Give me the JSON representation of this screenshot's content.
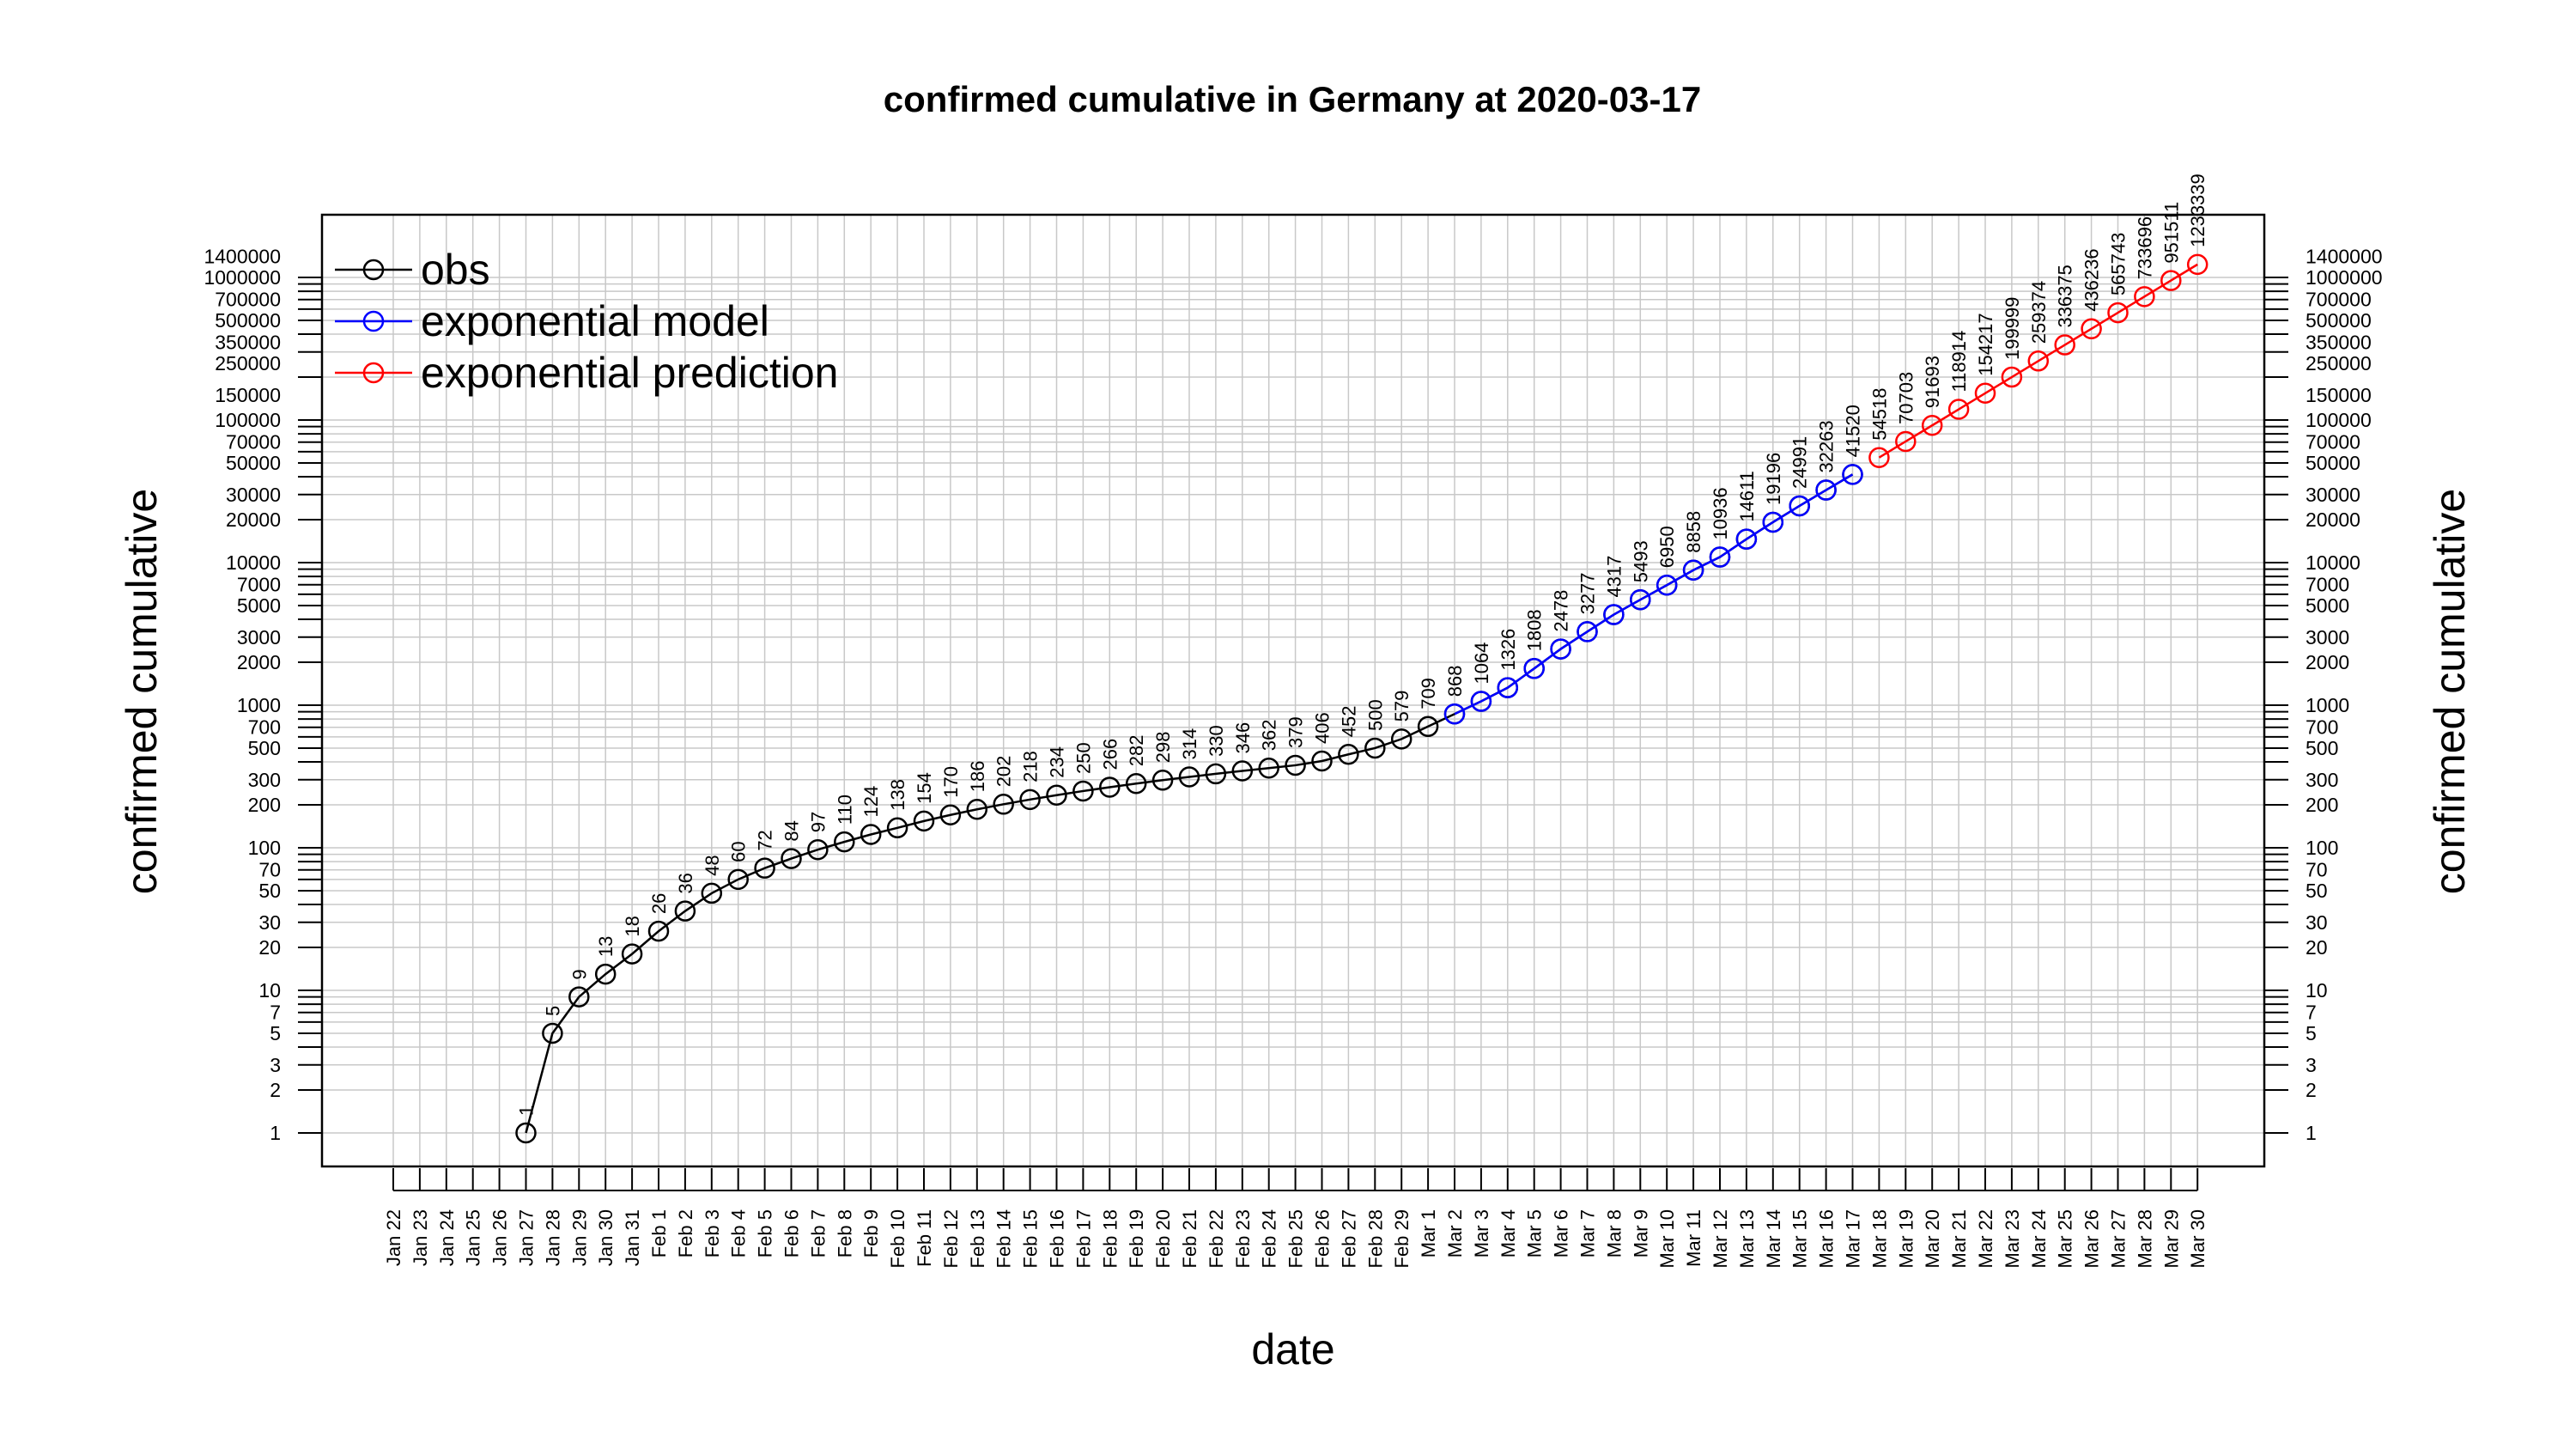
{
  "chart_data": {
    "type": "line",
    "title": "confirmed cumulative in Germany at 2020-03-17",
    "xlabel": "date",
    "ylabel": "confirmed cumulative",
    "y_scale": "log",
    "ylim": [
      1,
      1400000
    ],
    "grid": true,
    "legend_position": "top-left",
    "x_tick_labels": [
      "Jan 22",
      "Jan 23",
      "Jan 24",
      "Jan 25",
      "Jan 26",
      "Jan 27",
      "Jan 28",
      "Jan 29",
      "Jan 30",
      "Jan 31",
      "Feb 1",
      "Feb 2",
      "Feb 3",
      "Feb 4",
      "Feb 5",
      "Feb 6",
      "Feb 7",
      "Feb 8",
      "Feb 9",
      "Feb 10",
      "Feb 11",
      "Feb 12",
      "Feb 13",
      "Feb 14",
      "Feb 15",
      "Feb 16",
      "Feb 17",
      "Feb 18",
      "Feb 19",
      "Feb 20",
      "Feb 21",
      "Feb 22",
      "Feb 23",
      "Feb 24",
      "Feb 25",
      "Feb 26",
      "Feb 27",
      "Feb 28",
      "Feb 29",
      "Mar 1",
      "Mar 2",
      "Mar 3",
      "Mar 4",
      "Mar 5",
      "Mar 6",
      "Mar 7",
      "Mar 8",
      "Mar 9",
      "Mar 10",
      "Mar 11",
      "Mar 12",
      "Mar 13",
      "Mar 14",
      "Mar 15",
      "Mar 16",
      "Mar 17",
      "Mar 18",
      "Mar 19",
      "Mar 20",
      "Mar 21",
      "Mar 22",
      "Mar 23",
      "Mar 24",
      "Mar 25",
      "Mar 26",
      "Mar 27",
      "Mar 28",
      "Mar 29",
      "Mar 30"
    ],
    "y_tick_labels": [
      1,
      2,
      3,
      5,
      7,
      10,
      20,
      30,
      50,
      70,
      100,
      200,
      300,
      500,
      700,
      1000,
      2000,
      3000,
      5000,
      7000,
      10000,
      20000,
      30000,
      50000,
      70000,
      100000,
      150000,
      250000,
      350000,
      500000,
      700000,
      1000000,
      1400000
    ],
    "series": [
      {
        "name": "obs",
        "color": "#000000",
        "x": [
          "Jan 27",
          "Jan 28",
          "Jan 29",
          "Jan 30",
          "Jan 31",
          "Feb 1",
          "Feb 2",
          "Feb 3",
          "Feb 4",
          "Feb 5",
          "Feb 6",
          "Feb 7",
          "Feb 8",
          "Feb 9",
          "Feb 10",
          "Feb 11",
          "Feb 12",
          "Feb 13",
          "Feb 14",
          "Feb 15",
          "Feb 16",
          "Feb 17",
          "Feb 18",
          "Feb 19",
          "Feb 20",
          "Feb 21",
          "Feb 22",
          "Feb 23",
          "Feb 24",
          "Feb 25",
          "Feb 26",
          "Feb 27",
          "Feb 28",
          "Feb 29",
          "Mar 1",
          "Mar 2",
          "Mar 3",
          "Mar 4",
          "Mar 5",
          "Mar 6",
          "Mar 7",
          "Mar 8",
          "Mar 9",
          "Mar 10",
          "Mar 11",
          "Mar 12",
          "Mar 13",
          "Mar 14",
          "Mar 15",
          "Mar 16",
          "Mar 17"
        ],
        "values": [
          1,
          5,
          9,
          13,
          18,
          26,
          36,
          48,
          60,
          72,
          84,
          97,
          110,
          124,
          138,
          154,
          170,
          186,
          202,
          218,
          234,
          250,
          266,
          282,
          298,
          314,
          330,
          346,
          362,
          379,
          406,
          452,
          500,
          579,
          709,
          868,
          1064,
          1326,
          1808,
          2478,
          3277,
          4317,
          5493,
          6950,
          8858,
          10936,
          14611,
          19196,
          24991,
          32263,
          41520
        ],
        "labels": [
          "1",
          "5",
          "9",
          "13",
          "18",
          "26",
          "36",
          "48",
          "60",
          "72",
          "84",
          "97",
          "110",
          "124",
          "138",
          "154",
          "170",
          "186",
          "202",
          "218",
          "234",
          "250",
          "266",
          "282",
          "298",
          "314",
          "330",
          "346",
          "362",
          "379",
          "406",
          "452",
          "500",
          "579",
          "709",
          "868",
          "1064",
          "1326",
          "1808",
          "2478",
          "3277",
          "4317",
          "5493",
          "6950",
          "8858",
          "10936",
          "14611",
          "19196",
          "24991",
          "32263",
          "41520"
        ]
      },
      {
        "name": "exponential model",
        "color": "#0000ff",
        "x": [
          "Mar 2",
          "Mar 3",
          "Mar 4",
          "Mar 5",
          "Mar 6",
          "Mar 7",
          "Mar 8",
          "Mar 9",
          "Mar 10",
          "Mar 11",
          "Mar 12",
          "Mar 13",
          "Mar 14",
          "Mar 15",
          "Mar 16",
          "Mar 17"
        ],
        "values": [
          868,
          1064,
          1326,
          1808,
          2478,
          3277,
          4317,
          5493,
          6950,
          8858,
          10936,
          14611,
          19196,
          24991,
          32263,
          41520
        ]
      },
      {
        "name": "exponential prediction",
        "color": "#ff0000",
        "x": [
          "Mar 18",
          "Mar 19",
          "Mar 20",
          "Mar 21",
          "Mar 22",
          "Mar 23",
          "Mar 24",
          "Mar 25",
          "Mar 26",
          "Mar 27",
          "Mar 28",
          "Mar 29",
          "Mar 30"
        ],
        "values": [
          54518,
          70703,
          91693,
          118914,
          154217,
          199999,
          259374,
          336375,
          436236,
          565743,
          733696,
          951511,
          1233339
        ],
        "labels": [
          "54518",
          "70703",
          "91693",
          "118914",
          "154217",
          "199999",
          "259374",
          "336375",
          "436236",
          "565743",
          "733696",
          "951511",
          "1233339"
        ]
      }
    ]
  }
}
